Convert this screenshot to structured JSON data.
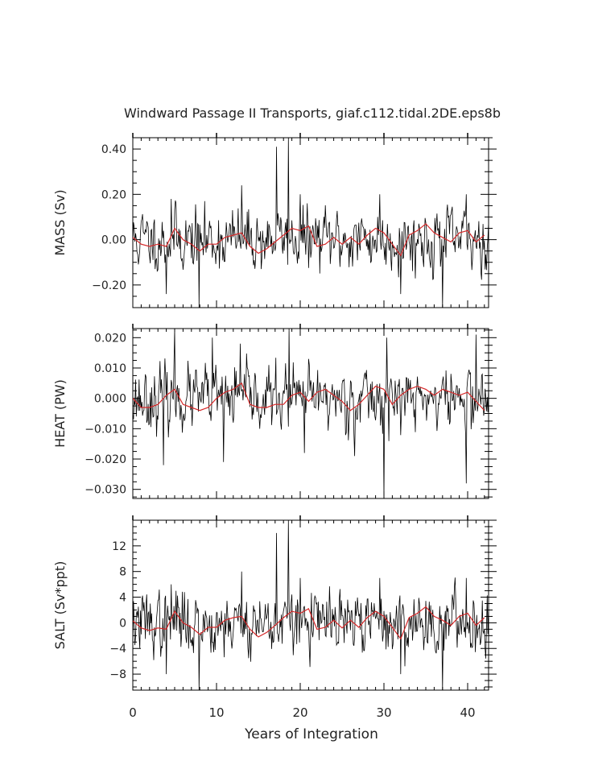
{
  "chart_data": [
    {
      "type": "line",
      "title": "Windward Passage II Transports, giaf.c112.tidal.2DE.eps8b",
      "ylabel": "MASS (Sv)",
      "ylim": [
        -0.3,
        0.45
      ],
      "yticks": [
        0.4,
        0.2,
        0.0,
        -0.2
      ],
      "ytick_labels": [
        "0.40",
        "0.20",
        "0.00",
        "-0.20"
      ],
      "xlim": [
        0,
        42.5
      ],
      "series": [
        {
          "color": "#000000",
          "seed": 11,
          "spikes": [
            [
              4.6,
              0.18
            ],
            [
              5.2,
              0.16
            ],
            [
              13.0,
              0.24
            ],
            [
              17.2,
              0.41
            ],
            [
              18.6,
              0.45
            ],
            [
              20.0,
              0.2
            ],
            [
              32.0,
              -0.24
            ],
            [
              29.5,
              0.2
            ],
            [
              37.0,
              -0.3
            ],
            [
              39.8,
              0.2
            ],
            [
              7.9,
              -0.3
            ],
            [
              4.0,
              -0.24
            ]
          ]
        },
        {
          "color": "#d62728",
          "x": [
            0,
            1,
            2,
            3,
            4,
            5,
            6,
            7,
            8,
            9,
            10,
            11,
            12,
            13,
            14,
            15,
            16,
            17,
            18,
            19,
            20,
            21,
            22,
            23,
            24,
            25,
            26,
            27,
            28,
            29,
            30,
            31,
            32,
            33,
            34,
            35,
            36,
            37,
            38,
            39,
            40,
            41,
            42
          ],
          "y": [
            0.01,
            -0.02,
            -0.03,
            -0.02,
            -0.03,
            0.05,
            0.0,
            -0.02,
            -0.05,
            -0.02,
            -0.02,
            0.01,
            0.02,
            0.03,
            -0.03,
            -0.06,
            -0.04,
            -0.01,
            0.02,
            0.05,
            0.04,
            0.06,
            -0.03,
            -0.02,
            0.01,
            -0.02,
            0.01,
            -0.02,
            0.02,
            0.05,
            0.03,
            -0.02,
            -0.07,
            0.02,
            0.04,
            0.07,
            0.03,
            0.01,
            -0.01,
            0.03,
            0.04,
            -0.01,
            0.02
          ]
        }
      ]
    },
    {
      "type": "line",
      "ylabel": "HEAT (PW)",
      "ylim": [
        -0.033,
        0.023
      ],
      "yticks": [
        0.02,
        0.01,
        0.0,
        -0.01,
        -0.02,
        -0.03
      ],
      "ytick_labels": [
        "0.020",
        "0.010",
        "0.000",
        "-0.010",
        "-0.020",
        "-0.030"
      ],
      "xlim": [
        0,
        42.5
      ],
      "series": [
        {
          "color": "#000000",
          "seed": 23,
          "spikes": [
            [
              5.0,
              0.023
            ],
            [
              9.5,
              0.02
            ],
            [
              12.8,
              0.018
            ],
            [
              18.7,
              0.023
            ],
            [
              21.0,
              0.013
            ],
            [
              3.7,
              -0.022
            ],
            [
              10.8,
              -0.021
            ],
            [
              26.5,
              -0.019
            ],
            [
              30.0,
              -0.033
            ],
            [
              30.3,
              0.02
            ],
            [
              39.8,
              -0.028
            ],
            [
              41.0,
              0.021
            ],
            [
              20.5,
              -0.018
            ]
          ]
        },
        {
          "color": "#d62728",
          "x": [
            0,
            1,
            2,
            3,
            4,
            5,
            6,
            7,
            8,
            9,
            10,
            11,
            12,
            13,
            14,
            15,
            16,
            17,
            18,
            19,
            20,
            21,
            22,
            23,
            24,
            25,
            26,
            27,
            28,
            29,
            30,
            31,
            32,
            33,
            34,
            35,
            36,
            37,
            38,
            39,
            40,
            41,
            42
          ],
          "y": [
            0.0,
            -0.003,
            -0.003,
            -0.002,
            0.001,
            0.003,
            -0.002,
            -0.003,
            -0.004,
            -0.003,
            0.0,
            0.002,
            0.003,
            0.005,
            -0.002,
            -0.003,
            -0.003,
            -0.002,
            -0.002,
            0.001,
            0.002,
            -0.001,
            0.002,
            0.003,
            0.001,
            -0.001,
            -0.004,
            -0.002,
            0.001,
            0.004,
            0.003,
            -0.002,
            0.001,
            0.003,
            0.004,
            0.003,
            0.001,
            0.003,
            0.002,
            0.001,
            0.002,
            -0.001,
            -0.004
          ]
        }
      ]
    },
    {
      "type": "line",
      "ylabel": "SALT (Sv*ppt)",
      "ylim": [
        -10.5,
        16
      ],
      "yticks": [
        12,
        8,
        4,
        0,
        -4,
        -8
      ],
      "ytick_labels": [
        "12",
        "8",
        "4",
        "0",
        "-4",
        "-8"
      ],
      "xlim": [
        0,
        42.5
      ],
      "xlabel": "Years of Integration",
      "xticks": [
        0,
        10,
        20,
        30,
        40
      ],
      "xtick_labels": [
        "0",
        "10",
        "20",
        "30",
        "40"
      ],
      "series": [
        {
          "color": "#000000",
          "seed": 37,
          "spikes": [
            [
              4.6,
              6.0
            ],
            [
              5.2,
              5.0
            ],
            [
              13.0,
              8.0
            ],
            [
              17.2,
              14.0
            ],
            [
              18.6,
              16.0
            ],
            [
              20.0,
              7.0
            ],
            [
              29.5,
              7.0
            ],
            [
              32.0,
              -8.0
            ],
            [
              37.0,
              -10.5
            ],
            [
              39.8,
              7.0
            ],
            [
              7.9,
              -10.5
            ],
            [
              4.0,
              -8.0
            ]
          ]
        },
        {
          "color": "#d62728",
          "x": [
            0,
            1,
            2,
            3,
            4,
            5,
            6,
            7,
            8,
            9,
            10,
            11,
            12,
            13,
            14,
            15,
            16,
            17,
            18,
            19,
            20,
            21,
            22,
            23,
            24,
            25,
            26,
            27,
            28,
            29,
            30,
            31,
            32,
            33,
            34,
            35,
            36,
            37,
            38,
            39,
            40,
            41,
            42
          ],
          "y": [
            0.3,
            -0.8,
            -1.2,
            -0.8,
            -1.0,
            1.8,
            0.0,
            -0.7,
            -1.8,
            -0.7,
            -0.7,
            0.4,
            0.8,
            1.0,
            -1.0,
            -2.2,
            -1.5,
            -0.4,
            0.8,
            1.8,
            1.5,
            2.2,
            -1.0,
            -0.7,
            0.4,
            -0.8,
            0.4,
            -0.7,
            0.8,
            1.8,
            1.0,
            -0.7,
            -2.5,
            0.8,
            1.5,
            2.5,
            1.0,
            0.4,
            -0.4,
            1.0,
            1.5,
            -0.4,
            0.8
          ]
        }
      ]
    }
  ]
}
